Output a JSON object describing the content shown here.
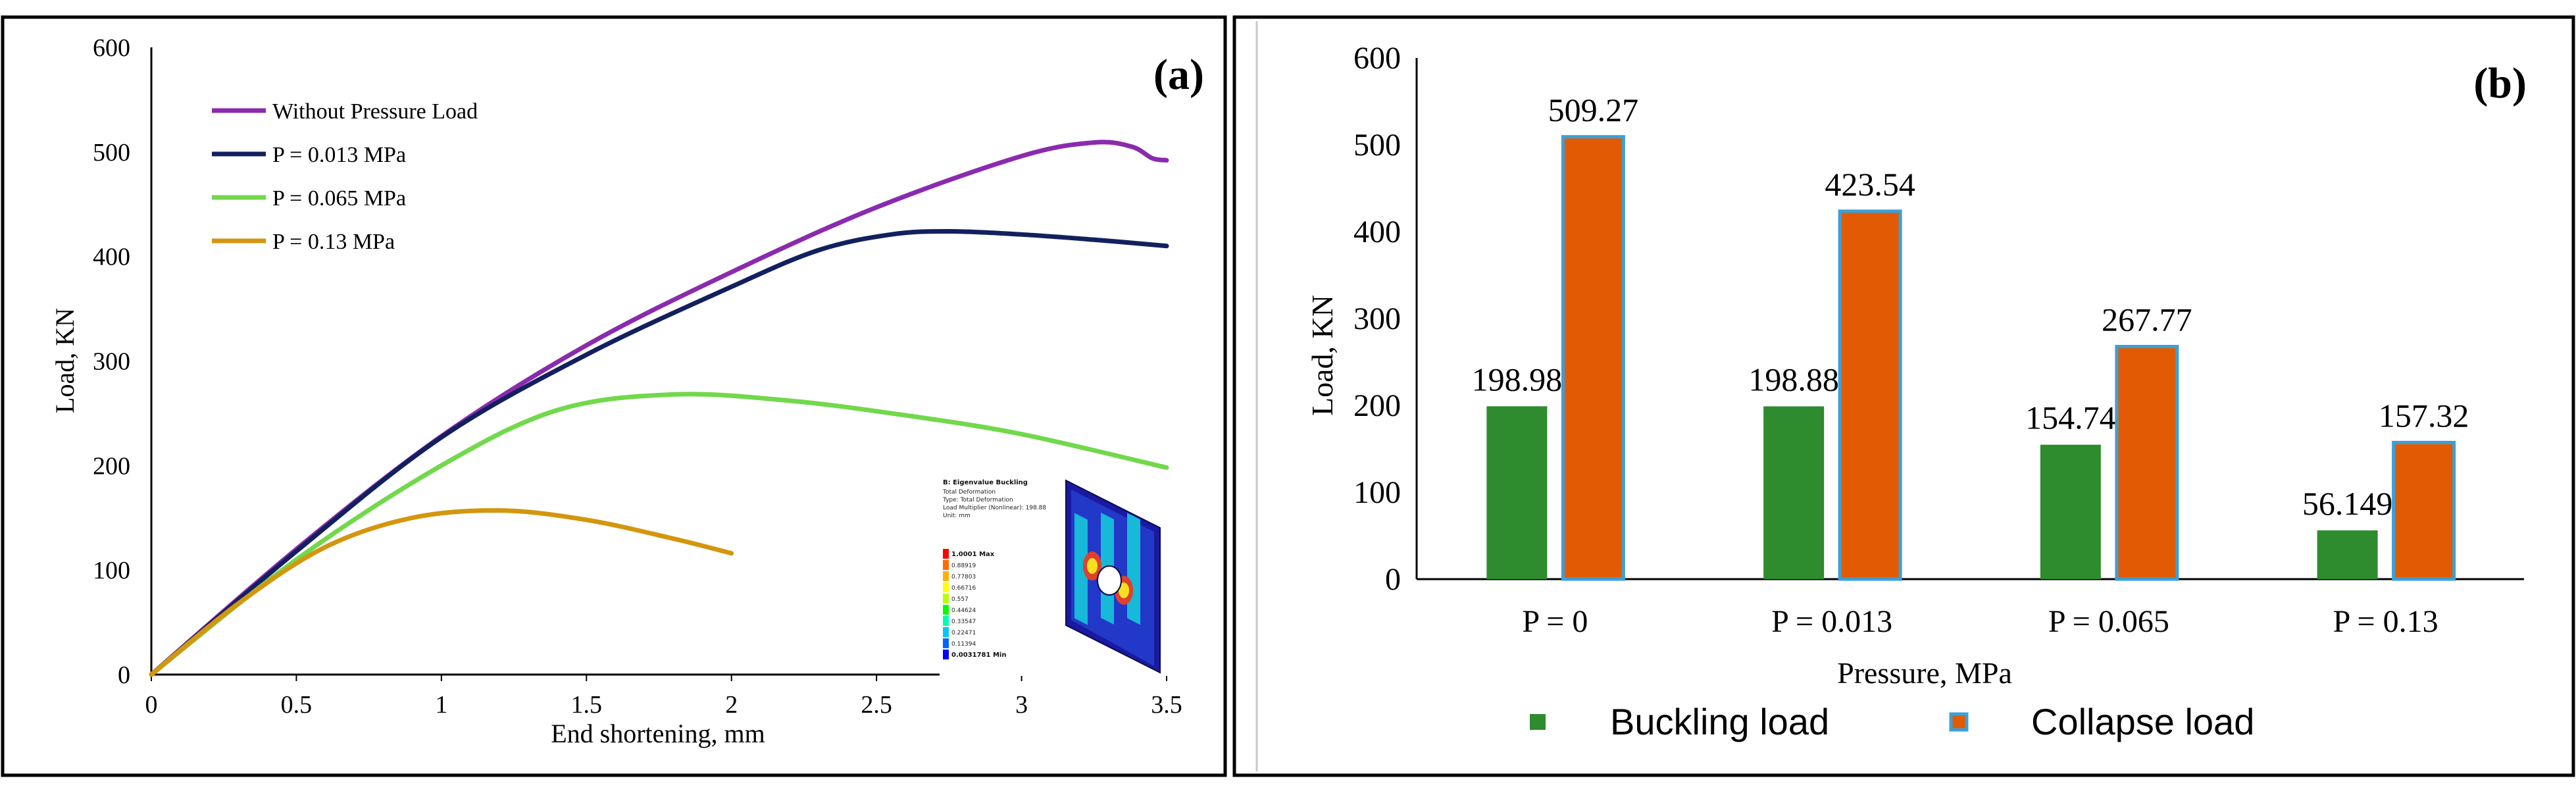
{
  "chart_data": [
    {
      "panel": "(a)",
      "type": "line",
      "xlabel": "End shortening, mm",
      "ylabel": "Load, KN",
      "xlim": [
        0,
        3.5
      ],
      "ylim": [
        0,
        600
      ],
      "xticks": [
        0,
        0.5,
        1,
        1.5,
        2,
        2.5,
        3,
        3.5
      ],
      "xtick_labels": [
        "0",
        "0.5",
        "1",
        "1.5",
        "2",
        "2.5",
        "3",
        "3.5"
      ],
      "yticks": [
        0,
        100,
        200,
        300,
        400,
        500,
        600
      ],
      "ytick_labels": [
        "0",
        "100",
        "200",
        "300",
        "400",
        "500",
        "600"
      ],
      "legend_position": "top-left",
      "series": [
        {
          "name": "Without Pressure Load",
          "color": "#8A2BAE",
          "x": [
            0,
            0.5,
            1.0,
            1.5,
            2.0,
            2.5,
            3.0,
            3.25,
            3.38,
            3.45,
            3.5
          ],
          "y": [
            0,
            120,
            228,
            315,
            385,
            447,
            496,
            509,
            505,
            494,
            492
          ]
        },
        {
          "name": "P = 0.013 MPa",
          "color": "#12205E",
          "x": [
            0,
            0.5,
            1.0,
            1.5,
            2.0,
            2.3,
            2.55,
            2.75,
            3.0,
            3.25,
            3.5
          ],
          "y": [
            0,
            118,
            227,
            306,
            371,
            406,
            421,
            424,
            421,
            416,
            410
          ]
        },
        {
          "name": "P = 0.065 MPa",
          "color": "#72D84C",
          "x": [
            0,
            0.5,
            1.0,
            1.4,
            1.8,
            2.2,
            2.6,
            3.0,
            3.5
          ],
          "y": [
            0,
            110,
            200,
            253,
            268,
            262,
            248,
            230,
            198
          ]
        },
        {
          "name": "P = 0.13 MPa",
          "color": "#D4960F",
          "x": [
            0,
            0.3,
            0.6,
            0.9,
            1.2,
            1.5,
            1.8,
            2.0
          ],
          "y": [
            0,
            68,
            122,
            150,
            157,
            148,
            130,
            116
          ]
        }
      ],
      "inset": {
        "title": "B: Eigenvalue Buckling",
        "lines": [
          "Total Deformation",
          "Type: Total Deformation",
          "Load Multiplier (Nonlinear): 198.88",
          "Unit: mm"
        ],
        "scale_values": [
          "1.0001 Max",
          "0.88919",
          "0.77803",
          "0.66716",
          "0.557",
          "0.44624",
          "0.33547",
          "0.22471",
          "0.11394",
          "0.0031781 Min"
        ],
        "scale_colors": [
          "#FF0000",
          "#FF6A00",
          "#FFB000",
          "#FFFF00",
          "#B8FF00",
          "#00FF00",
          "#00FFB0",
          "#00C8FF",
          "#0064FF",
          "#0000FF"
        ]
      }
    },
    {
      "panel": "(b)",
      "type": "bar",
      "xlabel": "Pressure, MPa",
      "ylabel": "Load, KN",
      "ylim": [
        0,
        600
      ],
      "yticks": [
        0,
        100,
        200,
        300,
        400,
        500,
        600
      ],
      "ytick_labels": [
        "0",
        "100",
        "200",
        "300",
        "400",
        "500",
        "600"
      ],
      "categories": [
        "P = 0",
        "P = 0.013",
        "P = 0.065",
        "P = 0.13"
      ],
      "legend_position": "bottom",
      "series": [
        {
          "name": "Buckling load",
          "color": "#2E8B2E",
          "values": [
            198.98,
            198.88,
            154.74,
            56.149
          ],
          "labels": [
            "198.98",
            "198.88",
            "154.74",
            "56.149"
          ]
        },
        {
          "name": "Collapse load",
          "color": "#E35A05",
          "edge": "#3AA0D8",
          "values": [
            509.27,
            423.54,
            267.77,
            157.32
          ],
          "labels": [
            "509.27",
            "423.54",
            "267.77",
            "157.32"
          ]
        }
      ]
    }
  ]
}
